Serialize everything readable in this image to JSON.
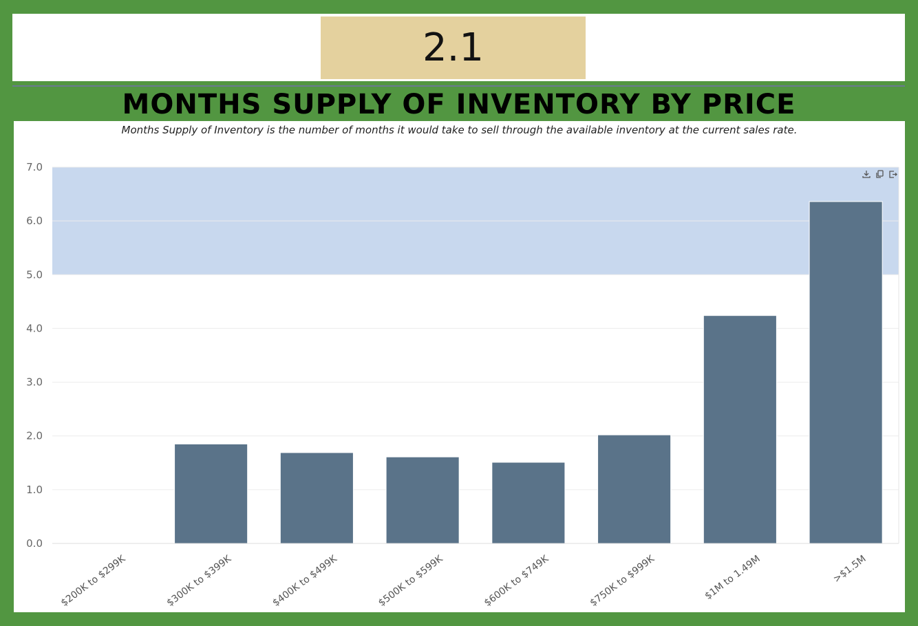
{
  "header": {
    "badge_value": "2.1",
    "title": "MONTHS SUPPLY OF INVENTORY BY PRICE"
  },
  "chart": {
    "subtitle": "Months Supply of Inventory is the number of months it would take to sell through the available inventory at the current sales rate.",
    "toolbar_icons": [
      "download-icon",
      "copy-icon",
      "share-icon"
    ]
  },
  "colors": {
    "bar": "#5a7389",
    "band": "#c8d8ee",
    "background": "#529641",
    "badge": "#e4d19e"
  },
  "chart_data": {
    "type": "bar",
    "categories": [
      "$200K to $299K",
      "$300K to $399K",
      "$400K to $499K",
      "$500K to $599K",
      "$600K to $749K",
      "$750K to $999K",
      "$1M to 1.49M",
      ">$1.5M"
    ],
    "values": [
      0,
      1.85,
      1.69,
      1.61,
      1.51,
      2.02,
      4.24,
      6.36
    ],
    "ylim": [
      0,
      7
    ],
    "yticks": [
      "0.0",
      "1.0",
      "2.0",
      "3.0",
      "4.0",
      "5.0",
      "6.0",
      "7.0"
    ],
    "highlight_band": [
      5,
      7
    ],
    "grid": true,
    "title": "",
    "xlabel": "",
    "ylabel": ""
  }
}
